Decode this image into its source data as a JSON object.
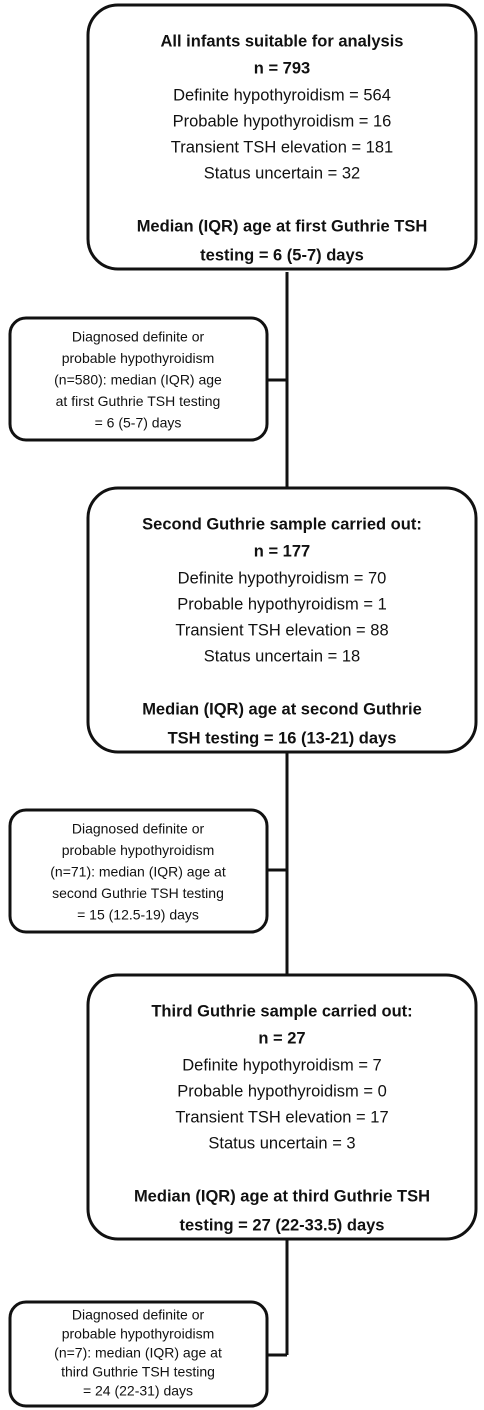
{
  "main_boxes": [
    {
      "heading": [
        "All infants suitable for analysis",
        "n = 793"
      ],
      "items": [
        "Definite hypothyroidism = 564",
        "Probable hypothyroidism = 16",
        "Transient TSH elevation = 181",
        "Status uncertain = 32"
      ],
      "footer": [
        "Median (IQR) age at first Guthrie TSH",
        "testing = 6 (5-7) days"
      ]
    },
    {
      "heading": [
        "Second Guthrie sample carried out:",
        "n = 177"
      ],
      "items": [
        "Definite hypothyroidism = 70",
        "Probable hypothyroidism = 1",
        "Transient TSH elevation = 88",
        "Status uncertain = 18"
      ],
      "footer": [
        "Median (IQR) age at second Guthrie",
        "TSH testing = 16 (13-21) days"
      ]
    },
    {
      "heading": [
        "Third Guthrie sample carried out:",
        "n = 27"
      ],
      "items": [
        "Definite hypothyroidism = 7",
        "Probable hypothyroidism = 0",
        "Transient TSH elevation = 17",
        "Status uncertain = 3"
      ],
      "footer": [
        "Median (IQR) age at third Guthrie TSH",
        "testing = 27 (22-33.5) days"
      ]
    }
  ],
  "side_boxes": [
    {
      "lines": [
        "Diagnosed definite or",
        "probable hypothyroidism",
        "(n=580): median (IQR) age",
        "at first Guthrie TSH testing",
        "= 6 (5-7) days"
      ]
    },
    {
      "lines": [
        "Diagnosed definite or",
        "probable hypothyroidism",
        "(n=71): median (IQR) age at",
        "second Guthrie TSH testing",
        "= 15 (12.5-19) days"
      ]
    },
    {
      "lines": [
        "Diagnosed definite or",
        "probable hypothyroidism",
        "(n=7): median (IQR) age at",
        "third Guthrie TSH testing",
        "= 24 (22-31) days"
      ]
    }
  ]
}
